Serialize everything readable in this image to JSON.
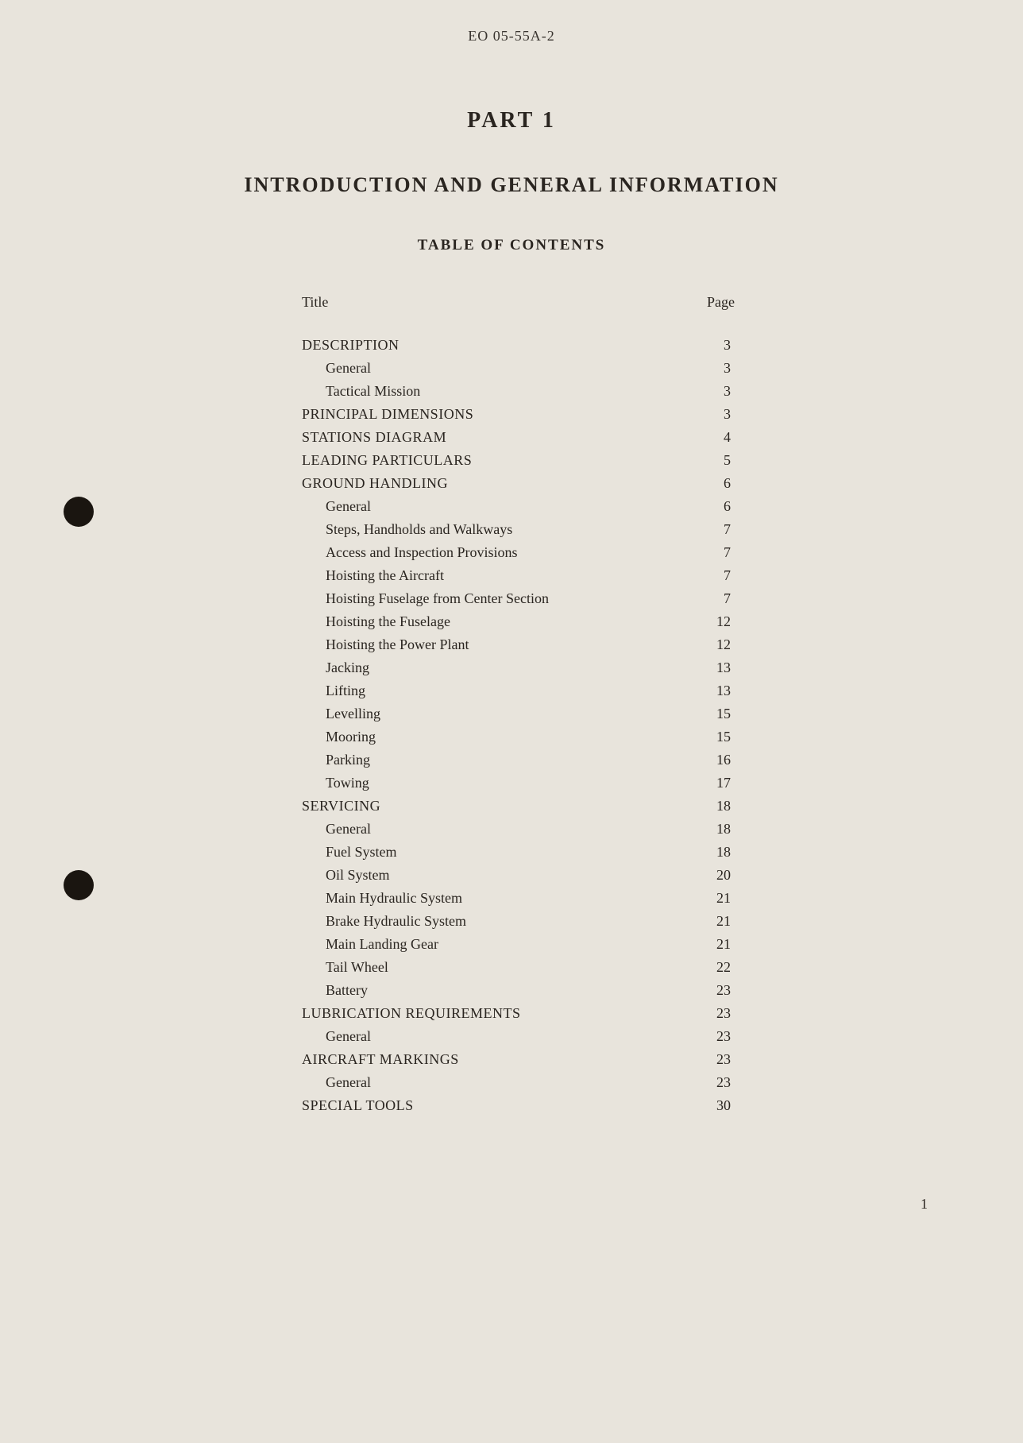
{
  "docNumber": "EO 05-55A-2",
  "partTitle": "PART  1",
  "mainHeading": "INTRODUCTION  AND  GENERAL  INFORMATION",
  "tocHeading": "TABLE  OF  CONTENTS",
  "tocHeader": {
    "titleLabel": "Title",
    "pageLabel": "Page"
  },
  "tocItems": [
    {
      "title": "DESCRIPTION",
      "page": "3",
      "level": "section"
    },
    {
      "title": "General",
      "page": "3",
      "level": "sub"
    },
    {
      "title": "Tactical Mission",
      "page": "3",
      "level": "sub"
    },
    {
      "title": "PRINCIPAL DIMENSIONS",
      "page": "3",
      "level": "section"
    },
    {
      "title": "STATIONS DIAGRAM",
      "page": "4",
      "level": "section"
    },
    {
      "title": "LEADING PARTICULARS",
      "page": "5",
      "level": "section"
    },
    {
      "title": "GROUND HANDLING",
      "page": "6",
      "level": "section"
    },
    {
      "title": "General",
      "page": "6",
      "level": "sub"
    },
    {
      "title": "Steps, Handholds and Walkways",
      "page": "7",
      "level": "sub"
    },
    {
      "title": "Access and Inspection Provisions",
      "page": "7",
      "level": "sub"
    },
    {
      "title": "Hoisting the Aircraft",
      "page": "7",
      "level": "sub"
    },
    {
      "title": "Hoisting Fuselage from Center Section",
      "page": "7",
      "level": "sub"
    },
    {
      "title": "Hoisting the Fuselage",
      "page": "12",
      "level": "sub"
    },
    {
      "title": "Hoisting the Power Plant",
      "page": "12",
      "level": "sub"
    },
    {
      "title": "Jacking",
      "page": "13",
      "level": "sub"
    },
    {
      "title": "Lifting",
      "page": "13",
      "level": "sub"
    },
    {
      "title": "Levelling",
      "page": "15",
      "level": "sub"
    },
    {
      "title": "Mooring",
      "page": "15",
      "level": "sub"
    },
    {
      "title": "Parking",
      "page": "16",
      "level": "sub"
    },
    {
      "title": "Towing",
      "page": "17",
      "level": "sub"
    },
    {
      "title": "SERVICING",
      "page": "18",
      "level": "section"
    },
    {
      "title": "General",
      "page": "18",
      "level": "sub"
    },
    {
      "title": "Fuel System",
      "page": "18",
      "level": "sub"
    },
    {
      "title": "Oil System",
      "page": "20",
      "level": "sub"
    },
    {
      "title": "Main Hydraulic System",
      "page": "21",
      "level": "sub"
    },
    {
      "title": "Brake Hydraulic System",
      "page": "21",
      "level": "sub"
    },
    {
      "title": "Main Landing Gear",
      "page": "21",
      "level": "sub"
    },
    {
      "title": "Tail Wheel",
      "page": "22",
      "level": "sub"
    },
    {
      "title": "Battery",
      "page": "23",
      "level": "sub"
    },
    {
      "title": "LUBRICATION REQUIREMENTS",
      "page": "23",
      "level": "section"
    },
    {
      "title": "General",
      "page": "23",
      "level": "sub"
    },
    {
      "title": "AIRCRAFT MARKINGS",
      "page": "23",
      "level": "section"
    },
    {
      "title": "General",
      "page": "23",
      "level": "sub"
    },
    {
      "title": "SPECIAL TOOLS",
      "page": "30",
      "level": "section"
    }
  ],
  "pageNumber": "1",
  "colors": {
    "background": "#e8e4dc",
    "text": "#2a2520",
    "punchHole": "#1a1510"
  },
  "typography": {
    "docNumberSize": 18,
    "partTitleSize": 28,
    "mainHeadingSize": 26,
    "tocHeadingSize": 19,
    "bodySize": 18
  }
}
